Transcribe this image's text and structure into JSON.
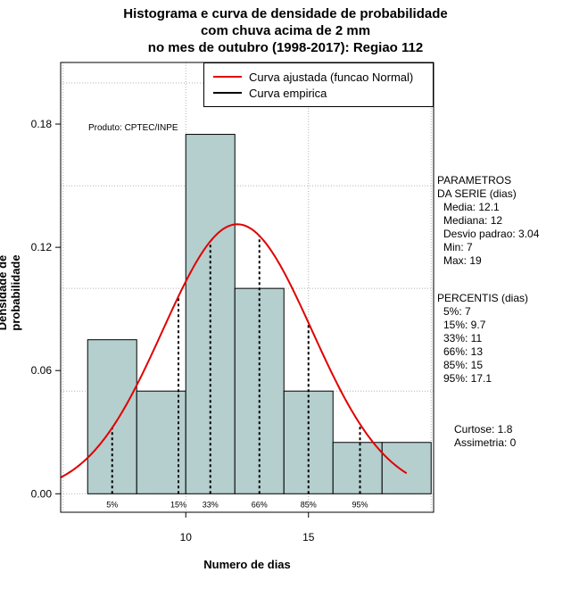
{
  "title_lines": [
    "Histograma e curva de densidade de probabilidade",
    "com chuva acima de 2 mm",
    "no mes de outubro (1998-2017): Regiao 112"
  ],
  "credit": "Produto: CPTEC/INPE",
  "legend": {
    "items": [
      {
        "label": "Curva ajustada (funcao Normal)",
        "color": "#e00000"
      },
      {
        "label": "Curva empirica",
        "color": "#000000"
      }
    ]
  },
  "parametros": {
    "header1": "PARAMETROS",
    "header2": "DA SERIE (dias)",
    "lines": [
      "Media: 12.1",
      "Mediana: 12",
      "Desvio padrao: 3.04",
      "Min: 7",
      "Max: 19"
    ]
  },
  "percentis": {
    "header": "PERCENTIS (dias)",
    "lines": [
      "5%: 7",
      "15%: 9.7",
      "33%: 11",
      "66%: 13",
      "85%: 15",
      "95%: 17.1"
    ]
  },
  "stats": {
    "curtose": "Curtose: 1.8",
    "assimetria": "Assimetria: 0"
  },
  "colors": {
    "bar_fill": "#b5cece",
    "curve": "#e00000",
    "grid": "#b0b0b0"
  },
  "chart_data": {
    "type": "bar",
    "title": "Histograma e curva de densidade de probabilidade com chuva acima de 2 mm no mes de outubro (1998-2017): Regiao 112",
    "xlabel": "Numero de dias",
    "ylabel": "Densidade de probabilidade",
    "xlim": [
      4.9,
      20.1
    ],
    "ylim": [
      -0.009,
      0.21
    ],
    "x_ticks": [
      10,
      15
    ],
    "y_ticks": [
      0.0,
      0.06,
      0.12,
      0.18
    ],
    "y_tick_labels": [
      "0.00",
      "0.06",
      "0.12",
      "0.18"
    ],
    "grid_x": [
      5,
      10,
      15,
      20
    ],
    "grid_y": [
      0,
      0.05,
      0.1,
      0.15,
      0.2
    ],
    "bins": [
      {
        "x0": 6,
        "x1": 8,
        "density": 0.075
      },
      {
        "x0": 8,
        "x1": 10,
        "density": 0.05
      },
      {
        "x0": 10,
        "x1": 12,
        "density": 0.175
      },
      {
        "x0": 12,
        "x1": 14,
        "density": 0.1
      },
      {
        "x0": 14,
        "x1": 16,
        "density": 0.05
      },
      {
        "x0": 16,
        "x1": 18,
        "density": 0.025
      },
      {
        "x0": 18,
        "x1": 20,
        "density": 0.025
      }
    ],
    "normal_curve": {
      "mean": 12.1,
      "sd": 3.04,
      "x_from": 4.9,
      "x_to": 19
    },
    "percentile_markers": [
      {
        "label": "5%",
        "x": 7
      },
      {
        "label": "15%",
        "x": 9.7
      },
      {
        "label": "33%",
        "x": 11
      },
      {
        "label": "66%",
        "x": 13
      },
      {
        "label": "85%",
        "x": 15
      },
      {
        "label": "95%",
        "x": 17.1
      }
    ]
  }
}
